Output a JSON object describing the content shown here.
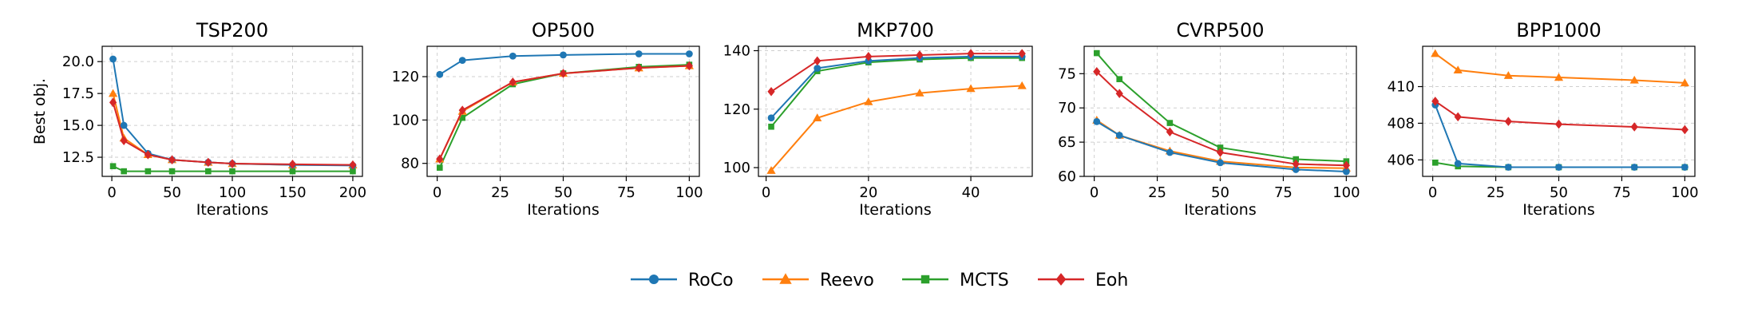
{
  "chart_data": [
    {
      "type": "line",
      "title": "TSP200",
      "xlabel": "Iterations",
      "ylabel": "Best obj.",
      "xlim": [
        -8,
        208
      ],
      "ylim": [
        11.0,
        21.2
      ],
      "xticks": [
        0,
        50,
        100,
        150,
        200
      ],
      "yticks": [
        12.5,
        15.0,
        17.5,
        20.0
      ],
      "ytick_labels": [
        "12.5",
        "15.0",
        "17.5",
        "20.0"
      ],
      "x": [
        1,
        10,
        30,
        50,
        80,
        100,
        150,
        200
      ],
      "series": [
        {
          "name": "RoCo",
          "values": [
            20.2,
            15.0,
            12.8,
            12.3,
            12.1,
            12.0,
            11.9,
            11.85
          ]
        },
        {
          "name": "Reevo",
          "values": [
            17.5,
            14.0,
            12.7,
            12.3,
            12.1,
            12.0,
            11.9,
            11.9
          ]
        },
        {
          "name": "MCTS",
          "values": [
            11.8,
            11.4,
            11.4,
            11.4,
            11.4,
            11.4,
            11.4,
            11.4
          ]
        },
        {
          "name": "Eoh",
          "values": [
            16.8,
            13.8,
            12.7,
            12.3,
            12.1,
            12.0,
            11.95,
            11.9
          ]
        }
      ],
      "grid": true
    },
    {
      "type": "line",
      "title": "OP500",
      "xlabel": "Iterations",
      "ylabel": "",
      "xlim": [
        -4,
        104
      ],
      "ylim": [
        74,
        134
      ],
      "xticks": [
        0,
        25,
        50,
        75,
        100
      ],
      "yticks": [
        80,
        100,
        120
      ],
      "ytick_labels": [
        "80",
        "100",
        "120"
      ],
      "x": [
        1,
        10,
        30,
        50,
        80,
        100
      ],
      "series": [
        {
          "name": "RoCo",
          "values": [
            121,
            127.5,
            129.5,
            130,
            130.5,
            130.5
          ]
        },
        {
          "name": "Reevo",
          "values": [
            82,
            104,
            117.5,
            121.5,
            124,
            125
          ]
        },
        {
          "name": "MCTS",
          "values": [
            78,
            101,
            116.5,
            121.5,
            124.5,
            125.5
          ]
        },
        {
          "name": "Eoh",
          "values": [
            82,
            104.5,
            117.5,
            121.5,
            124,
            125
          ]
        }
      ],
      "grid": true
    },
    {
      "type": "line",
      "title": "MKP700",
      "xlabel": "Iterations",
      "ylabel": "",
      "xlim": [
        -1.5,
        52
      ],
      "ylim": [
        97,
        141.5
      ],
      "xticks": [
        0,
        20,
        40
      ],
      "yticks": [
        100,
        120,
        140
      ],
      "ytick_labels": [
        "100",
        "120",
        "140"
      ],
      "x": [
        1,
        10,
        20,
        30,
        40,
        50
      ],
      "series": [
        {
          "name": "RoCo",
          "values": [
            117,
            134,
            136.5,
            137.5,
            138,
            138
          ]
        },
        {
          "name": "Reevo",
          "values": [
            99,
            117,
            122.5,
            125.5,
            127,
            128
          ]
        },
        {
          "name": "MCTS",
          "values": [
            114,
            133,
            136,
            137,
            137.5,
            137.5
          ]
        },
        {
          "name": "Eoh",
          "values": [
            126,
            136.5,
            138,
            138.5,
            139,
            139
          ]
        }
      ],
      "grid": true
    },
    {
      "type": "line",
      "title": "CVRP500",
      "xlabel": "Iterations",
      "ylabel": "",
      "xlim": [
        -4,
        104
      ],
      "ylim": [
        60,
        79
      ],
      "xticks": [
        0,
        25,
        50,
        75,
        100
      ],
      "yticks": [
        60,
        65,
        70,
        75
      ],
      "ytick_labels": [
        "60",
        "65",
        "70",
        "75"
      ],
      "x": [
        1,
        10,
        30,
        50,
        80,
        100
      ],
      "series": [
        {
          "name": "RoCo",
          "values": [
            68,
            66,
            63.5,
            62,
            61,
            60.7
          ]
        },
        {
          "name": "Reevo",
          "values": [
            68.2,
            66,
            63.7,
            62.2,
            61.3,
            61.2
          ]
        },
        {
          "name": "MCTS",
          "values": [
            78,
            74.2,
            67.8,
            64.2,
            62.5,
            62.2
          ]
        },
        {
          "name": "Eoh",
          "values": [
            75.3,
            72.1,
            66.5,
            63.5,
            61.8,
            61.6
          ]
        }
      ],
      "grid": true
    },
    {
      "type": "line",
      "title": "BPP1000",
      "xlabel": "Iterations",
      "ylabel": "",
      "xlim": [
        -4,
        104
      ],
      "ylim": [
        405.1,
        412.2
      ],
      "xticks": [
        0,
        25,
        50,
        75,
        100
      ],
      "yticks": [
        406,
        408,
        410
      ],
      "ytick_labels": [
        "406",
        "408",
        "410"
      ],
      "x": [
        1,
        10,
        30,
        50,
        80,
        100
      ],
      "series": [
        {
          "name": "RoCo",
          "values": [
            409,
            405.8,
            405.6,
            405.6,
            405.6,
            405.6
          ]
        },
        {
          "name": "Reevo",
          "values": [
            411.8,
            410.9,
            410.6,
            410.5,
            410.35,
            410.2
          ]
        },
        {
          "name": "MCTS",
          "values": [
            405.85,
            405.65,
            405.6,
            405.6,
            405.6,
            405.6
          ]
        },
        {
          "name": "Eoh",
          "values": [
            409.2,
            408.35,
            408.1,
            407.95,
            407.8,
            407.65
          ]
        }
      ],
      "grid": true
    }
  ],
  "legend": {
    "placement": "bottom-center",
    "entries": [
      {
        "name": "RoCo",
        "color": "#1f77b4",
        "marker": "circle"
      },
      {
        "name": "Reevo",
        "color": "#ff7f0e",
        "marker": "triangle"
      },
      {
        "name": "MCTS",
        "color": "#2ca02c",
        "marker": "square"
      },
      {
        "name": "Eoh",
        "color": "#d62728",
        "marker": "diamond"
      }
    ]
  },
  "colors": {
    "RoCo": "#1f77b4",
    "Reevo": "#ff7f0e",
    "MCTS": "#2ca02c",
    "Eoh": "#d62728"
  }
}
